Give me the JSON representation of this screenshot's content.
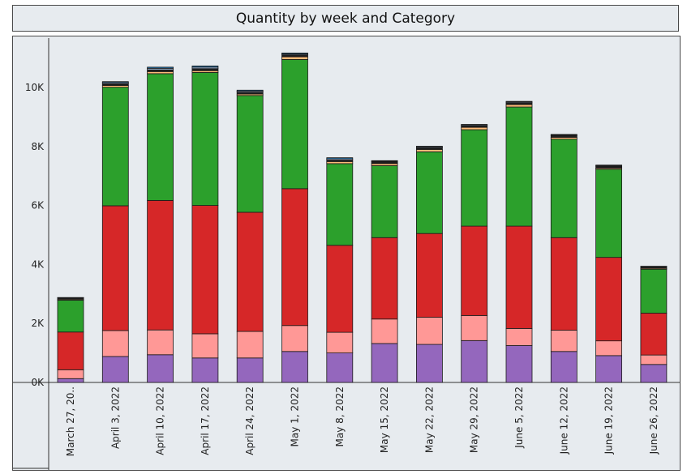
{
  "chart_data": {
    "type": "bar",
    "stacked": true,
    "title": "Quantity by week and Category",
    "xlabel": "",
    "ylabel": "",
    "ylim": [
      0,
      11500
    ],
    "yticks": [
      {
        "value": 0,
        "label": "0K"
      },
      {
        "value": 2000,
        "label": "2K"
      },
      {
        "value": 4000,
        "label": "4K"
      },
      {
        "value": 6000,
        "label": "6K"
      },
      {
        "value": 8000,
        "label": "8K"
      },
      {
        "value": 10000,
        "label": "10K"
      }
    ],
    "categories": [
      "March 27, 20..",
      "April 3, 2022",
      "April 10, 2022",
      "April 17, 2022",
      "April 24, 2022",
      "May 1, 2022",
      "May 8, 2022",
      "May 15, 2022",
      "May 22, 2022",
      "May 29, 2022",
      "June 5, 2022",
      "June 12, 2022",
      "June 19, 2022",
      "June 26, 2022"
    ],
    "grid": false,
    "legend": "none",
    "series": [
      {
        "color": "#9467bd",
        "values": [
          130,
          880,
          940,
          830,
          830,
          1050,
          1000,
          1320,
          1290,
          1420,
          1250,
          1050,
          910,
          610
        ]
      },
      {
        "color": "#ff9896",
        "values": [
          300,
          880,
          840,
          820,
          900,
          880,
          700,
          830,
          920,
          850,
          580,
          720,
          500,
          320
        ]
      },
      {
        "color": "#d62728",
        "values": [
          1280,
          4230,
          4390,
          4350,
          4040,
          4640,
          2950,
          2760,
          2840,
          3030,
          3470,
          3140,
          2830,
          1420
        ]
      },
      {
        "color": "#2ca02c",
        "values": [
          1080,
          4020,
          4300,
          4510,
          3960,
          4380,
          2770,
          2440,
          2770,
          3270,
          4040,
          3340,
          2990,
          1490
        ]
      },
      {
        "color": "#ffbb78",
        "values": [
          30,
          60,
          70,
          60,
          50,
          90,
          70,
          70,
          80,
          80,
          80,
          60,
          40,
          30
        ]
      },
      {
        "color": "#1f1f1f",
        "values": [
          40,
          60,
          60,
          70,
          60,
          70,
          50,
          60,
          60,
          50,
          60,
          60,
          60,
          50
        ]
      },
      {
        "color": "#aec7e8",
        "values": [
          10,
          40,
          50,
          50,
          40,
          30,
          40,
          20,
          30,
          30,
          30,
          20,
          20,
          10
        ]
      },
      {
        "color": "#1f77b4",
        "values": [
          10,
          30,
          40,
          40,
          30,
          30,
          40,
          20,
          20,
          20,
          20,
          20,
          20,
          10
        ]
      }
    ]
  }
}
